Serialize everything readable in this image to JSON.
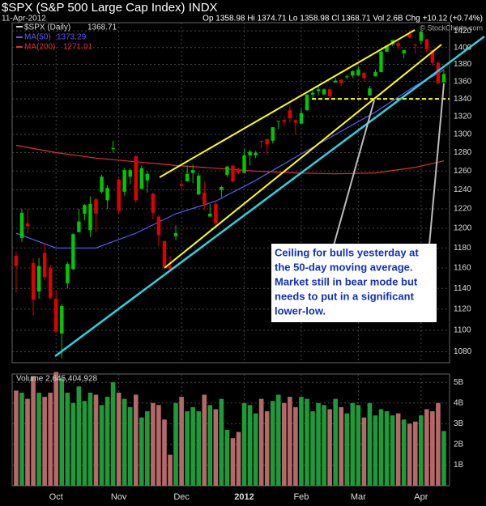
{
  "chart_data": {
    "type": "candlestick",
    "title": "$SPX (S&P 500 Large Cap Index) INDX",
    "date": "11-Apr-2012",
    "quote": "Op 1358.98  Hi 1374.71  Lo 1358.98  Cl 1368.71  Vol 2.6B  Chg +10.12 (+0.74%)",
    "copyright": "© StockCharts.com",
    "series_name": "$SPX (Daily)",
    "last_close": 1368.71,
    "up_color": "#00c800",
    "down_color": "#e00000",
    "log_scale": true,
    "grid": true,
    "ylim": [
      1070,
      1430
    ],
    "yticks": [
      1080,
      1100,
      1120,
      1140,
      1160,
      1180,
      1200,
      1220,
      1240,
      1260,
      1280,
      1300,
      1320,
      1340,
      1360,
      1380,
      1400,
      1420
    ],
    "xlim": [
      -0.7,
      76
    ],
    "xticks": [
      {
        "value": 7,
        "label": "Oct"
      },
      {
        "value": 18,
        "label": "Nov"
      },
      {
        "value": 29,
        "label": "Dec"
      },
      {
        "value": 40,
        "label": "2012"
      },
      {
        "value": 50,
        "label": "Feb"
      },
      {
        "value": 60,
        "label": "Mar"
      },
      {
        "value": 71,
        "label": "Apr"
      }
    ],
    "ohlc": [
      [
        1172,
        1176,
        1136,
        1162
      ],
      [
        1190,
        1220,
        1186,
        1216
      ],
      [
        1205,
        1220,
        1195,
        1202
      ],
      [
        1165,
        1170,
        1114,
        1129
      ],
      [
        1137,
        1170,
        1130,
        1162
      ],
      [
        1175,
        1185,
        1148,
        1151
      ],
      [
        1160,
        1163,
        1129,
        1131
      ],
      [
        1130,
        1138,
        1097,
        1099
      ],
      [
        1097,
        1125,
        1074,
        1123
      ],
      [
        1145,
        1166,
        1140,
        1164
      ],
      [
        1159,
        1195,
        1158,
        1194
      ],
      [
        1196,
        1220,
        1196,
        1207
      ],
      [
        1215,
        1225,
        1208,
        1224
      ],
      [
        1198,
        1233,
        1191,
        1225
      ],
      [
        1230,
        1232,
        1196,
        1215
      ],
      [
        1238,
        1256,
        1236,
        1254
      ],
      [
        1229,
        1245,
        1220,
        1242
      ],
      [
        1284,
        1293,
        1280,
        1285
      ],
      [
        1251,
        1252,
        1215,
        1218
      ],
      [
        1238,
        1263,
        1234,
        1261
      ],
      [
        1254,
        1263,
        1246,
        1261
      ],
      [
        1276,
        1277,
        1226,
        1229
      ],
      [
        1241,
        1266,
        1241,
        1263
      ],
      [
        1250,
        1260,
        1237,
        1257
      ],
      [
        1236,
        1237,
        1209,
        1216
      ],
      [
        1212,
        1213,
        1182,
        1193
      ],
      [
        1187,
        1187,
        1161,
        1161
      ],
      [
        1162,
        1172,
        1158,
        1159
      ],
      [
        1192,
        1203,
        1188,
        1195
      ],
      [
        1246,
        1251,
        1239,
        1244
      ],
      [
        1249,
        1266,
        1249,
        1257
      ],
      [
        1258,
        1267,
        1247,
        1261
      ],
      [
        1235,
        1258,
        1235,
        1255
      ],
      [
        1237,
        1249,
        1219,
        1225
      ],
      [
        1212,
        1225,
        1212,
        1215
      ],
      [
        1225,
        1229,
        1203,
        1205
      ],
      [
        1240,
        1244,
        1232,
        1243
      ],
      [
        1256,
        1265,
        1254,
        1265
      ],
      [
        1266,
        1266,
        1248,
        1249
      ],
      [
        1261,
        1264,
        1257,
        1258
      ],
      [
        1258,
        1284,
        1258,
        1277
      ],
      [
        1277,
        1283,
        1266,
        1281
      ],
      [
        1277,
        1282,
        1274,
        1280
      ],
      [
        1293,
        1293,
        1285,
        1292
      ],
      [
        1295,
        1295,
        1278,
        1289
      ],
      [
        1293,
        1308,
        1290,
        1308
      ],
      [
        1315,
        1315,
        1306,
        1315
      ],
      [
        1316,
        1318,
        1309,
        1314
      ],
      [
        1327,
        1333,
        1313,
        1318
      ],
      [
        1316,
        1316,
        1300,
        1313
      ],
      [
        1312,
        1330,
        1312,
        1324
      ],
      [
        1327,
        1345,
        1327,
        1345
      ],
      [
        1345,
        1351,
        1341,
        1347
      ],
      [
        1349,
        1354,
        1344,
        1351
      ],
      [
        1345,
        1352,
        1345,
        1351
      ],
      [
        1351,
        1353,
        1341,
        1343
      ],
      [
        1359,
        1364,
        1359,
        1361
      ],
      [
        1362,
        1363,
        1355,
        1358
      ],
      [
        1365,
        1368,
        1363,
        1366
      ],
      [
        1367,
        1373,
        1364,
        1372
      ],
      [
        1367,
        1378,
        1367,
        1374
      ],
      [
        1370,
        1371,
        1360,
        1364
      ],
      [
        1344,
        1355,
        1344,
        1352
      ],
      [
        1366,
        1374,
        1366,
        1371
      ],
      [
        1371,
        1396,
        1371,
        1395
      ],
      [
        1395,
        1402,
        1395,
        1402
      ],
      [
        1404,
        1409,
        1402,
        1409
      ],
      [
        1405,
        1407,
        1398,
        1402
      ],
      [
        1393,
        1397,
        1387,
        1397
      ],
      [
        1416,
        1419,
        1411,
        1412
      ],
      [
        1404,
        1404,
        1393,
        1403
      ],
      [
        1408,
        1422,
        1404,
        1419
      ],
      [
        1410,
        1410,
        1394,
        1398
      ],
      [
        1397,
        1397,
        1378,
        1382
      ],
      [
        1382,
        1383,
        1357,
        1358
      ],
      [
        1358.98,
        1374.71,
        1358.98,
        1368.71
      ]
    ],
    "overlays": [
      {
        "name": "MA(50)",
        "color": "#5a5aff",
        "last": 1373.29,
        "x": [
          0,
          7,
          14,
          21,
          28,
          35,
          42,
          49,
          56,
          63,
          70,
          75
        ],
        "values": [
          1195,
          1180,
          1180,
          1195,
          1215,
          1228,
          1250,
          1275,
          1300,
          1325,
          1355,
          1373.29
        ]
      },
      {
        "name": "MA(200)",
        "color": "#e03030",
        "last": 1271.01,
        "x": [
          0,
          7,
          14,
          21,
          28,
          35,
          42,
          49,
          56,
          63,
          70,
          75
        ],
        "values": [
          1288,
          1280,
          1274,
          1270,
          1266,
          1263,
          1260,
          1258,
          1257,
          1258,
          1264,
          1271.01
        ]
      }
    ],
    "support_level": 1340,
    "support_color": "#ffff00",
    "annotation": [
      "Ceiling for bulls yesterday at",
      "the 50-day moving average.",
      "Market still in bear mode but",
      "needs to put in a significant",
      "lower-low."
    ],
    "volume": {
      "title": "Volume 2,645,404,928",
      "ylim": [
        0,
        5.4
      ],
      "yticks": [
        {
          "value": 1,
          "label": "1B"
        },
        {
          "value": 2,
          "label": "2B"
        },
        {
          "value": 3,
          "label": "3B"
        },
        {
          "value": 4,
          "label": "4B"
        },
        {
          "value": 5,
          "label": "5B"
        }
      ],
      "up_color": "#1f9a3a",
      "down_color": "#b56868",
      "values": [
        4.6,
        4.5,
        4.2,
        5.3,
        4.5,
        4.3,
        4.5,
        5.5,
        5.2,
        4.5,
        4.0,
        4.8,
        4.1,
        4.5,
        4.4,
        3.9,
        4.3,
        5.0,
        4.5,
        4.2,
        3.8,
        4.4,
        3.3,
        3.6,
        4.0,
        3.9,
        3.2,
        1.5,
        4.0,
        4.3,
        3.6,
        3.8,
        3.6,
        4.4,
        3.9,
        3.7,
        4.2,
        2.7,
        2.3,
        2.6,
        4.0,
        3.9,
        3.5,
        4.2,
        3.6,
        4.1,
        4.4,
        4.0,
        4.3,
        3.8,
        4.3,
        4.2,
        3.6,
        4.0,
        3.9,
        3.7,
        4.2,
        3.8,
        3.5,
        4.0,
        3.9,
        3.3,
        4.0,
        3.4,
        3.7,
        3.6,
        3.4,
        3.5,
        3.2,
        3.0,
        3.1,
        3.4,
        3.7,
        3.6,
        4.0,
        2.645404928
      ]
    }
  }
}
